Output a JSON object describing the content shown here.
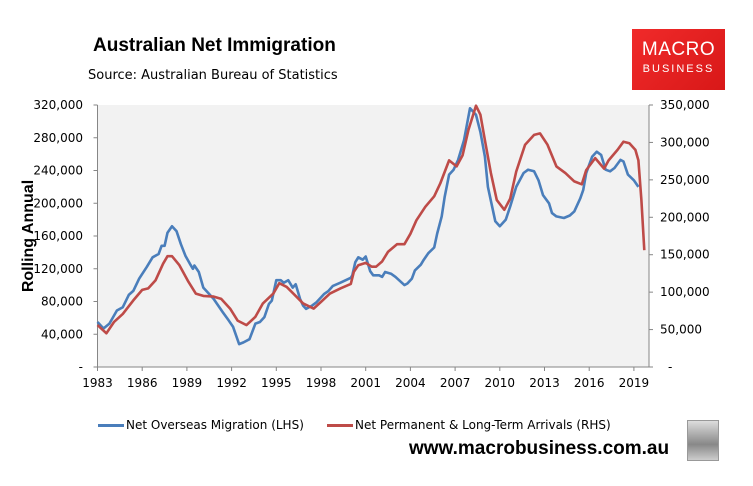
{
  "header": {
    "title": "Australian Net Immigration",
    "source": "Source: Australian Bureau of Statistics"
  },
  "logo": {
    "line1": "MACRO",
    "line2": "BUSINESS"
  },
  "footer": {
    "url": "www.macrobusiness.com.au"
  },
  "colors": {
    "blue": "#4a7ebb",
    "red": "#be4b48",
    "plot_bg": "#f2f2f2",
    "logo_red": "#e82020"
  },
  "chart_data": {
    "type": "line",
    "title": "Australian Net Immigration",
    "ylabel": "Rolling Annual",
    "xlabel": "",
    "xlim": [
      1983,
      2020.1
    ],
    "ylim_left": [
      0,
      320000
    ],
    "ylim_right": [
      0,
      350000
    ],
    "x_ticks": [
      "1983",
      "1986",
      "1989",
      "1992",
      "1995",
      "1998",
      "2001",
      "2004",
      "2007",
      "2010",
      "2013",
      "2016",
      "2019"
    ],
    "y_ticks_left": [
      "-",
      "40,000",
      "80,000",
      "120,000",
      "160,000",
      "200,000",
      "240,000",
      "280,000",
      "320,000"
    ],
    "y_ticks_right": [
      "-",
      "50,000",
      "100,000",
      "150,000",
      "200,000",
      "250,000",
      "300,000",
      "350,000"
    ],
    "grid": false,
    "legend_position": "bottom",
    "series": [
      {
        "name": "Net Overseas Migration (LHS)",
        "axis": "left",
        "color": "#4a7ebb",
        "points": [
          [
            1983.0,
            55000
          ],
          [
            1983.4,
            47000
          ],
          [
            1983.8,
            53000
          ],
          [
            1984.3,
            69000
          ],
          [
            1984.7,
            73000
          ],
          [
            1985.1,
            88000
          ],
          [
            1985.4,
            93000
          ],
          [
            1985.8,
            108000
          ],
          [
            1986.3,
            122000
          ],
          [
            1986.7,
            134000
          ],
          [
            1987.1,
            138000
          ],
          [
            1987.3,
            148000
          ],
          [
            1987.5,
            148000
          ],
          [
            1987.7,
            164000
          ],
          [
            1988.0,
            172000
          ],
          [
            1988.3,
            166000
          ],
          [
            1988.6,
            150000
          ],
          [
            1988.9,
            136000
          ],
          [
            1989.2,
            126000
          ],
          [
            1989.4,
            120000
          ],
          [
            1989.5,
            124000
          ],
          [
            1989.8,
            116000
          ],
          [
            1990.1,
            97000
          ],
          [
            1990.4,
            91000
          ],
          [
            1990.8,
            83000
          ],
          [
            1991.4,
            67000
          ],
          [
            1991.8,
            57000
          ],
          [
            1992.1,
            49000
          ],
          [
            1992.5,
            28000
          ],
          [
            1992.8,
            30000
          ],
          [
            1993.2,
            34000
          ],
          [
            1993.6,
            53000
          ],
          [
            1993.9,
            55000
          ],
          [
            1994.2,
            61000
          ],
          [
            1994.5,
            77000
          ],
          [
            1994.7,
            81000
          ],
          [
            1995.0,
            106000
          ],
          [
            1995.3,
            106000
          ],
          [
            1995.5,
            103000
          ],
          [
            1995.8,
            106000
          ],
          [
            1996.1,
            97000
          ],
          [
            1996.3,
            101000
          ],
          [
            1996.6,
            83000
          ],
          [
            1996.8,
            75000
          ],
          [
            1997.0,
            71000
          ],
          [
            1997.4,
            75000
          ],
          [
            1997.7,
            79000
          ],
          [
            1998.2,
            89000
          ],
          [
            1998.5,
            93000
          ],
          [
            1998.8,
            99000
          ],
          [
            1999.3,
            103000
          ],
          [
            2000.0,
            109000
          ],
          [
            2000.1,
            112000
          ],
          [
            2000.3,
            128000
          ],
          [
            2000.5,
            134000
          ],
          [
            2000.8,
            131000
          ],
          [
            2001.0,
            135000
          ],
          [
            2001.3,
            117000
          ],
          [
            2001.5,
            112000
          ],
          [
            2001.9,
            112000
          ],
          [
            2002.1,
            110000
          ],
          [
            2002.3,
            116000
          ],
          [
            2002.7,
            114000
          ],
          [
            2003.0,
            110000
          ],
          [
            2003.6,
            100000
          ],
          [
            2003.8,
            102000
          ],
          [
            2004.1,
            108000
          ],
          [
            2004.3,
            118000
          ],
          [
            2004.7,
            125000
          ],
          [
            2004.9,
            131000
          ],
          [
            2005.2,
            139000
          ],
          [
            2005.6,
            146000
          ],
          [
            2005.8,
            163000
          ],
          [
            2006.1,
            184000
          ],
          [
            2006.3,
            208000
          ],
          [
            2006.6,
            235000
          ],
          [
            2006.9,
            241000
          ],
          [
            2007.2,
            253000
          ],
          [
            2007.6,
            277000
          ],
          [
            2008.0,
            316000
          ],
          [
            2008.4,
            308000
          ],
          [
            2008.7,
            287000
          ],
          [
            2009.0,
            257000
          ],
          [
            2009.2,
            220000
          ],
          [
            2009.7,
            178000
          ],
          [
            2010.0,
            172000
          ],
          [
            2010.4,
            180000
          ],
          [
            2010.7,
            196000
          ],
          [
            2011.1,
            220000
          ],
          [
            2011.6,
            237000
          ],
          [
            2011.9,
            241000
          ],
          [
            2012.3,
            239000
          ],
          [
            2012.6,
            228000
          ],
          [
            2012.9,
            210000
          ],
          [
            2013.3,
            200000
          ],
          [
            2013.5,
            188000
          ],
          [
            2013.8,
            184000
          ],
          [
            2014.3,
            182000
          ],
          [
            2014.7,
            185000
          ],
          [
            2015.0,
            190000
          ],
          [
            2015.4,
            206000
          ],
          [
            2015.6,
            216000
          ],
          [
            2015.8,
            237000
          ],
          [
            2016.2,
            257000
          ],
          [
            2016.5,
            263000
          ],
          [
            2016.8,
            259000
          ],
          [
            2017.1,
            241000
          ],
          [
            2017.4,
            239000
          ],
          [
            2017.7,
            243000
          ],
          [
            2018.1,
            253000
          ],
          [
            2018.3,
            251000
          ],
          [
            2018.6,
            235000
          ],
          [
            2019.0,
            228000
          ],
          [
            2019.3,
            220000
          ]
        ]
      },
      {
        "name": "Net Permanent & Long-Term Arrivals (RHS)",
        "axis": "right",
        "color": "#be4b48",
        "points": [
          [
            1983.0,
            56000
          ],
          [
            1983.6,
            45000
          ],
          [
            1984.1,
            60000
          ],
          [
            1984.7,
            71000
          ],
          [
            1985.4,
            89000
          ],
          [
            1986.0,
            103000
          ],
          [
            1986.4,
            105000
          ],
          [
            1986.9,
            116000
          ],
          [
            1987.4,
            138000
          ],
          [
            1987.7,
            148000
          ],
          [
            1988.0,
            148000
          ],
          [
            1988.5,
            136000
          ],
          [
            1989.1,
            114000
          ],
          [
            1989.6,
            98000
          ],
          [
            1990.1,
            95000
          ],
          [
            1990.8,
            94000
          ],
          [
            1991.3,
            91000
          ],
          [
            1991.9,
            78000
          ],
          [
            1992.4,
            62000
          ],
          [
            1993.0,
            56000
          ],
          [
            1993.6,
            67000
          ],
          [
            1994.1,
            85000
          ],
          [
            1994.8,
            98000
          ],
          [
            1995.2,
            112000
          ],
          [
            1995.7,
            107000
          ],
          [
            1996.2,
            97000
          ],
          [
            1996.8,
            85000
          ],
          [
            1997.5,
            78000
          ],
          [
            1998.0,
            87000
          ],
          [
            1998.6,
            98000
          ],
          [
            1999.3,
            105000
          ],
          [
            2000.0,
            111000
          ],
          [
            2000.2,
            127000
          ],
          [
            2000.5,
            136000
          ],
          [
            2001.0,
            139000
          ],
          [
            2001.4,
            134000
          ],
          [
            2001.7,
            134000
          ],
          [
            2002.1,
            141000
          ],
          [
            2002.5,
            154000
          ],
          [
            2003.1,
            164000
          ],
          [
            2003.6,
            164000
          ],
          [
            2004.0,
            178000
          ],
          [
            2004.4,
            196000
          ],
          [
            2005.0,
            214000
          ],
          [
            2005.6,
            228000
          ],
          [
            2006.0,
            245000
          ],
          [
            2006.6,
            276000
          ],
          [
            2007.1,
            268000
          ],
          [
            2007.5,
            283000
          ],
          [
            2007.9,
            317000
          ],
          [
            2008.4,
            349000
          ],
          [
            2008.7,
            337000
          ],
          [
            2009.0,
            303000
          ],
          [
            2009.4,
            259000
          ],
          [
            2009.8,
            223000
          ],
          [
            2010.3,
            210000
          ],
          [
            2010.7,
            225000
          ],
          [
            2011.1,
            261000
          ],
          [
            2011.7,
            297000
          ],
          [
            2012.3,
            310000
          ],
          [
            2012.7,
            312000
          ],
          [
            2013.2,
            297000
          ],
          [
            2013.8,
            268000
          ],
          [
            2014.4,
            259000
          ],
          [
            2015.0,
            248000
          ],
          [
            2015.5,
            244000
          ],
          [
            2015.8,
            263000
          ],
          [
            2016.4,
            279000
          ],
          [
            2017.0,
            265000
          ],
          [
            2017.3,
            276000
          ],
          [
            2017.9,
            290000
          ],
          [
            2018.3,
            301000
          ],
          [
            2018.7,
            299000
          ],
          [
            2019.1,
            290000
          ],
          [
            2019.3,
            276000
          ],
          [
            2019.5,
            223000
          ],
          [
            2019.7,
            156000
          ]
        ]
      }
    ]
  }
}
